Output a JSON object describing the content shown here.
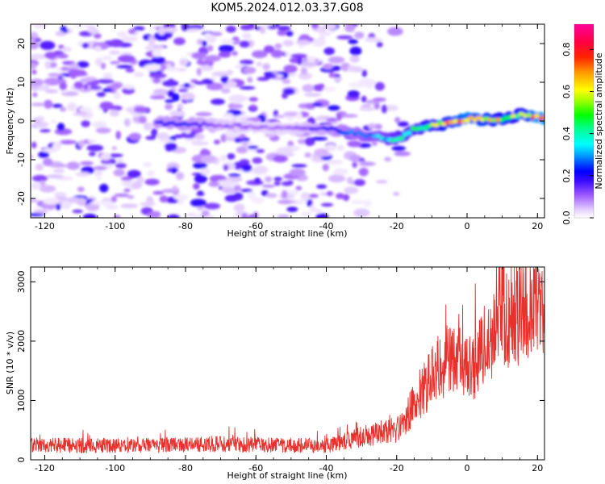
{
  "title": "KOM5.2024.012.03.37.G08",
  "chart_data": [
    {
      "type": "heatmap",
      "xlabel": "Height of straight line (km)",
      "ylabel": "Frequency (Hz)",
      "xlim": [
        -124,
        22
      ],
      "ylim": [
        -25,
        25
      ],
      "xticks": [
        -120,
        -100,
        -80,
        -60,
        -40,
        -20,
        0,
        20
      ],
      "yticks": [
        -20,
        -10,
        0,
        10,
        20
      ],
      "xtick_labels": [
        "-120",
        "-100",
        "-80",
        "-60",
        "-40",
        "-20",
        "0",
        "20"
      ],
      "ytick_labels": [
        "-20",
        "-10",
        "0",
        "10",
        "20"
      ],
      "colorbar": {
        "label": "Normalized spectral amplitude",
        "range": [
          0,
          0.92
        ],
        "ticks": [
          0.0,
          0.2,
          0.4,
          0.6,
          0.8
        ],
        "tick_labels": [
          "0.0",
          "0.2",
          "0.4",
          "0.6",
          "0.8"
        ],
        "colormap": [
          "#ffffff",
          "#6600ff",
          "#0000ff",
          "#00ffff",
          "#00ff00",
          "#ffff00",
          "#ff8000",
          "#ff0000",
          "#ff00aa"
        ]
      },
      "ridge": {
        "x": [
          -88,
          -80,
          -70,
          -60,
          -50,
          -40,
          -35,
          -30,
          -25,
          -22,
          -18,
          -15,
          -10,
          -5,
          0,
          5,
          10,
          15,
          20,
          22
        ],
        "y": [
          -0.5,
          -0.8,
          -1.0,
          -1.5,
          -2.0,
          -2.0,
          -2.8,
          -3.5,
          -4.2,
          -4.8,
          -4.0,
          -2.0,
          -1.0,
          -0.5,
          0.5,
          0.4,
          0.5,
          1.5,
          1.0,
          0.8
        ],
        "amplitude": [
          0.2,
          0.22,
          0.12,
          0.1,
          0.1,
          0.18,
          0.25,
          0.3,
          0.35,
          0.4,
          0.45,
          0.45,
          0.55,
          0.7,
          0.8,
          0.7,
          0.6,
          0.55,
          0.85,
          0.85
        ]
      }
    },
    {
      "type": "line",
      "xlabel": "Height of straight line (km)",
      "ylabel": "SNR (10 * v/v)",
      "xlim": [
        -124,
        22
      ],
      "ylim": [
        0,
        3250
      ],
      "xticks": [
        -120,
        -100,
        -80,
        -60,
        -40,
        -20,
        0,
        20
      ],
      "yticks": [
        0,
        1000,
        2000,
        3000
      ],
      "xtick_labels": [
        "-120",
        "-100",
        "-80",
        "-60",
        "-40",
        "-20",
        "0",
        "20"
      ],
      "ytick_labels": [
        "0",
        "1000",
        "2000",
        "3000"
      ],
      "color": "#e8302c",
      "series": [
        {
          "x": [
            -124,
            -110,
            -100,
            -90,
            -80,
            -70,
            -60,
            -50,
            -40,
            -35,
            -30,
            -25,
            -22,
            -20,
            -18,
            -15,
            -12,
            -10,
            -8,
            -5,
            -2,
            0,
            3,
            5,
            8,
            10,
            12,
            15,
            18,
            20,
            22
          ],
          "y": [
            250,
            240,
            240,
            245,
            250,
            265,
            255,
            245,
            240,
            300,
            380,
            450,
            500,
            500,
            600,
            1000,
            1200,
            1400,
            1550,
            1700,
            1850,
            1600,
            1650,
            2000,
            2200,
            2500,
            2300,
            2450,
            2550,
            2600,
            2400
          ]
        }
      ]
    }
  ]
}
